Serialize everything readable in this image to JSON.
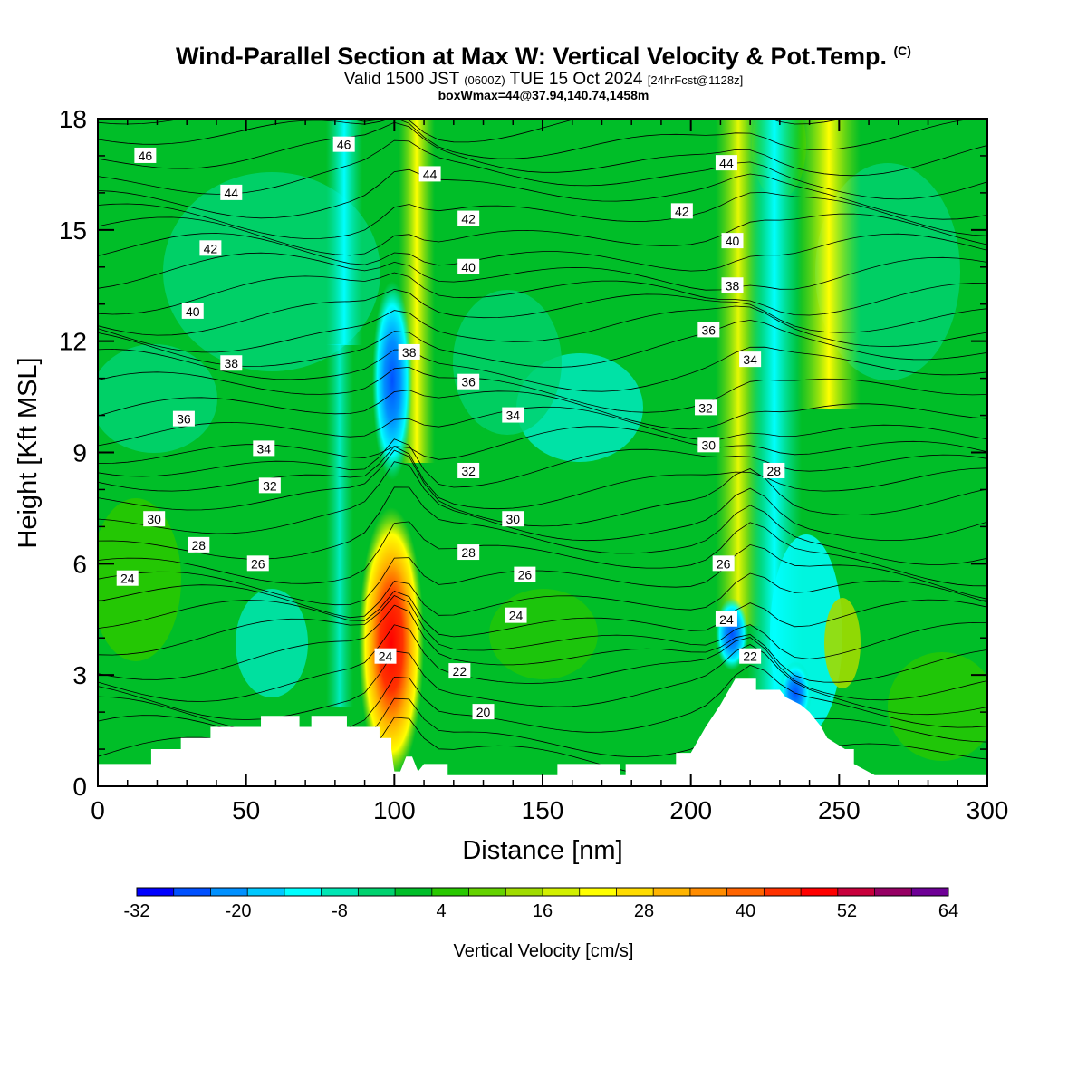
{
  "title": {
    "main": "Wind-Parallel Section at Max W: Vertical Velocity & Pot.Temp.",
    "copyright": "(C)",
    "valid_prefix": "Valid 1500 JST",
    "valid_zulu": "(0600Z)",
    "valid_date": "TUE 15 Oct 2024",
    "forecast": "[24hrFcst@1128z]",
    "boxinfo": "boxWmax=44@37.94,140.74,1458m"
  },
  "chart_data": {
    "type": "heatmap",
    "xlabel": "Distance [nm]",
    "ylabel": "Height [Kft MSL]",
    "xlim": [
      0,
      300
    ],
    "ylim": [
      0,
      18
    ],
    "x_ticks": [
      0,
      50,
      100,
      150,
      200,
      250,
      300
    ],
    "y_ticks": [
      0,
      3,
      6,
      9,
      12,
      15,
      18
    ],
    "colorbar": {
      "label": "Vertical Velocity [cm/s]",
      "range": [
        -32,
        64
      ],
      "step": 4,
      "tick_labels": [
        "-32",
        "-20",
        "-8",
        "4",
        "16",
        "28",
        "40",
        "52",
        "64"
      ],
      "colors": [
        "#0000ff",
        "#0050ff",
        "#0090ff",
        "#00c8ff",
        "#00ffff",
        "#00e6b4",
        "#00d26e",
        "#00be28",
        "#28c800",
        "#64d200",
        "#a0dc00",
        "#d2f000",
        "#ffff00",
        "#ffdc00",
        "#ffb400",
        "#ff8c00",
        "#ff6400",
        "#ff3200",
        "#ff0000",
        "#c8003c",
        "#960064",
        "#6e0096"
      ]
    },
    "terrain": [
      [
        0,
        0.6
      ],
      [
        18,
        0.6
      ],
      [
        18,
        1.0
      ],
      [
        28,
        1.0
      ],
      [
        28,
        1.3
      ],
      [
        38,
        1.3
      ],
      [
        38,
        1.6
      ],
      [
        55,
        1.6
      ],
      [
        55,
        1.9
      ],
      [
        68,
        1.9
      ],
      [
        68,
        1.6
      ],
      [
        72,
        1.6
      ],
      [
        72,
        1.9
      ],
      [
        84,
        1.9
      ],
      [
        84,
        1.6
      ],
      [
        95,
        1.6
      ],
      [
        95,
        1.3
      ],
      [
        99,
        1.3
      ],
      [
        99,
        1.0
      ],
      [
        100,
        0.4
      ],
      [
        102,
        0.4
      ],
      [
        104,
        0.8
      ],
      [
        106,
        0.8
      ],
      [
        108,
        0.4
      ],
      [
        110,
        0.6
      ],
      [
        118,
        0.6
      ],
      [
        118,
        0.3
      ],
      [
        155,
        0.3
      ],
      [
        155,
        0.6
      ],
      [
        176,
        0.6
      ],
      [
        176,
        0.3
      ],
      [
        178,
        0.3
      ],
      [
        178,
        0.6
      ],
      [
        195,
        0.6
      ],
      [
        195,
        0.9
      ],
      [
        200,
        0.9
      ],
      [
        205,
        1.6
      ],
      [
        210,
        2.2
      ],
      [
        215,
        2.9
      ],
      [
        222,
        2.9
      ],
      [
        222,
        2.6
      ],
      [
        230,
        2.6
      ],
      [
        232,
        2.4
      ],
      [
        237,
        2.2
      ],
      [
        240,
        2.0
      ],
      [
        244,
        1.6
      ],
      [
        246,
        1.3
      ],
      [
        252,
        1.0
      ],
      [
        255,
        1.0
      ],
      [
        255,
        0.6
      ],
      [
        262,
        0.3
      ],
      [
        268,
        0.3
      ],
      [
        278,
        0.3
      ],
      [
        290,
        0.3
      ],
      [
        300,
        0.3
      ]
    ],
    "contour_labels": [
      {
        "text": "46",
        "x": 16,
        "y": 17.0
      },
      {
        "text": "46",
        "x": 83,
        "y": 17.3
      },
      {
        "text": "44",
        "x": 45,
        "y": 16.0
      },
      {
        "text": "44",
        "x": 112,
        "y": 16.5
      },
      {
        "text": "44",
        "x": 212,
        "y": 16.8
      },
      {
        "text": "42",
        "x": 38,
        "y": 14.5
      },
      {
        "text": "42",
        "x": 125,
        "y": 15.3
      },
      {
        "text": "42",
        "x": 197,
        "y": 15.5
      },
      {
        "text": "40",
        "x": 32,
        "y": 12.8
      },
      {
        "text": "40",
        "x": 125,
        "y": 14.0
      },
      {
        "text": "40",
        "x": 214,
        "y": 14.7
      },
      {
        "text": "38",
        "x": 45,
        "y": 11.4
      },
      {
        "text": "38",
        "x": 105,
        "y": 11.7
      },
      {
        "text": "38",
        "x": 214,
        "y": 13.5
      },
      {
        "text": "36",
        "x": 29,
        "y": 9.9
      },
      {
        "text": "36",
        "x": 125,
        "y": 10.9
      },
      {
        "text": "36",
        "x": 206,
        "y": 12.3
      },
      {
        "text": "34",
        "x": 56,
        "y": 9.1
      },
      {
        "text": "34",
        "x": 140,
        "y": 10.0
      },
      {
        "text": "34",
        "x": 220,
        "y": 11.5
      },
      {
        "text": "32",
        "x": 58,
        "y": 8.1
      },
      {
        "text": "32",
        "x": 125,
        "y": 8.5
      },
      {
        "text": "32",
        "x": 205,
        "y": 10.2
      },
      {
        "text": "30",
        "x": 19,
        "y": 7.2
      },
      {
        "text": "30",
        "x": 140,
        "y": 7.2
      },
      {
        "text": "30",
        "x": 206,
        "y": 9.2
      },
      {
        "text": "28",
        "x": 34,
        "y": 6.5
      },
      {
        "text": "28",
        "x": 125,
        "y": 6.3
      },
      {
        "text": "28",
        "x": 228,
        "y": 8.5
      },
      {
        "text": "26",
        "x": 54,
        "y": 6.0
      },
      {
        "text": "26",
        "x": 144,
        "y": 5.7
      },
      {
        "text": "26",
        "x": 211,
        "y": 6.0
      },
      {
        "text": "24",
        "x": 10,
        "y": 5.6
      },
      {
        "text": "24",
        "x": 141,
        "y": 4.6
      },
      {
        "text": "24",
        "x": 212,
        "y": 4.5
      },
      {
        "text": "24",
        "x": 97,
        "y": 3.5
      },
      {
        "text": "22",
        "x": 122,
        "y": 3.1
      },
      {
        "text": "22",
        "x": 220,
        "y": 3.5
      },
      {
        "text": "20",
        "x": 130,
        "y": 2.0
      }
    ]
  }
}
